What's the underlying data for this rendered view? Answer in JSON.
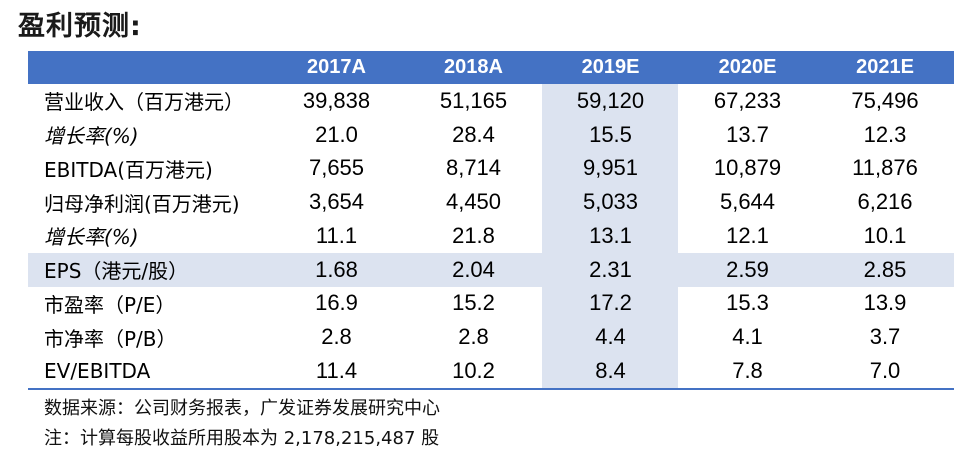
{
  "title": "盈利预测:",
  "header": [
    "",
    "2017A",
    "2018A",
    "2019E",
    "2020E",
    "2021E"
  ],
  "rows": [
    {
      "label": "营业收入（百万港元）",
      "italic": false,
      "values": [
        "39,838",
        "51,165",
        "59,120",
        "67,233",
        "75,496"
      ]
    },
    {
      "label": "增长率(%)",
      "italic": true,
      "values": [
        "21.0",
        "28.4",
        "15.5",
        "13.7",
        "12.3"
      ]
    },
    {
      "label": "EBITDA(百万港元)",
      "italic": false,
      "values": [
        "7,655",
        "8,714",
        "9,951",
        "10,879",
        "11,876"
      ]
    },
    {
      "label": "归母净利润(百万港元)",
      "italic": false,
      "values": [
        "3,654",
        "4,450",
        "5,033",
        "5,644",
        "6,216"
      ]
    },
    {
      "label": "增长率(%)",
      "italic": true,
      "values": [
        "11.1",
        "21.8",
        "13.1",
        "12.1",
        "10.1"
      ]
    },
    {
      "label": "EPS（港元/股）",
      "italic": false,
      "values": [
        "1.68",
        "2.04",
        "2.31",
        "2.59",
        "2.85"
      ]
    },
    {
      "label": "市盈率（P/E）",
      "italic": false,
      "values": [
        "16.9",
        "15.2",
        "17.2",
        "15.3",
        "13.9"
      ]
    },
    {
      "label": "市净率（P/B）",
      "italic": false,
      "values": [
        "2.8",
        "2.8",
        "4.4",
        "4.1",
        "3.7"
      ]
    },
    {
      "label": "EV/EBITDA",
      "italic": false,
      "values": [
        "11.4",
        "10.2",
        "8.4",
        "7.8",
        "7.0"
      ]
    }
  ],
  "notes": {
    "source": "数据来源：公司财务报表，广发证券发展研究中心",
    "footnote": "注：计算每股收益所用股本为 2,178,215,487 股"
  },
  "colors": {
    "header_bg": "#4472c4",
    "highlight": "#dce3f0"
  }
}
